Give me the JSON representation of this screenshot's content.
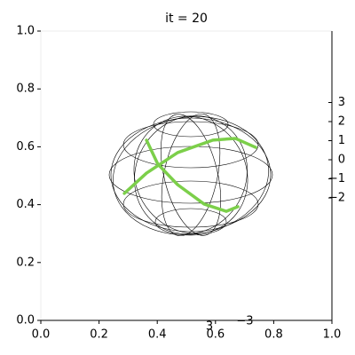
{
  "chart_data": {
    "type": "line",
    "title": "it = 20",
    "xlim": [
      0,
      1
    ],
    "ylim": [
      0,
      1
    ],
    "xticks": [
      {
        "value": 0,
        "label": "0.0"
      },
      {
        "value": 0.2,
        "label": "0.2"
      },
      {
        "value": 0.4,
        "label": "0.4"
      },
      {
        "value": 0.6,
        "label": "0.6"
      },
      {
        "value": 0.8,
        "label": "0.8"
      },
      {
        "value": 1,
        "label": "1.0"
      }
    ],
    "yticks": [
      {
        "value": 0,
        "label": "0.0"
      },
      {
        "value": 0.2,
        "label": "0.2"
      },
      {
        "value": 0.4,
        "label": "0.4"
      },
      {
        "value": 0.6,
        "label": "0.6"
      },
      {
        "value": 0.8,
        "label": "0.8"
      },
      {
        "value": 1,
        "label": "1.0"
      }
    ],
    "zticks": [
      3,
      2,
      1,
      0,
      {
        "value": -1,
        "label": "−1"
      },
      {
        "value": -2,
        "label": "−2"
      }
    ],
    "x3ticks": [
      3,
      {
        "value": -3,
        "label": "−3"
      }
    ],
    "x": [
      0.287,
      0.363,
      0.47,
      0.591,
      0.668,
      0.738,
      null,
      0.363,
      0.402,
      0.47,
      0.561,
      0.637,
      0.677
    ],
    "series": [
      {
        "color": "#7ccf4a",
        "values": [
          0.439,
          0.509,
          0.58,
          0.623,
          0.629,
          0.598,
          null,
          0.623,
          0.54,
          0.469,
          0.402,
          0.377,
          0.393
        ]
      }
    ]
  }
}
